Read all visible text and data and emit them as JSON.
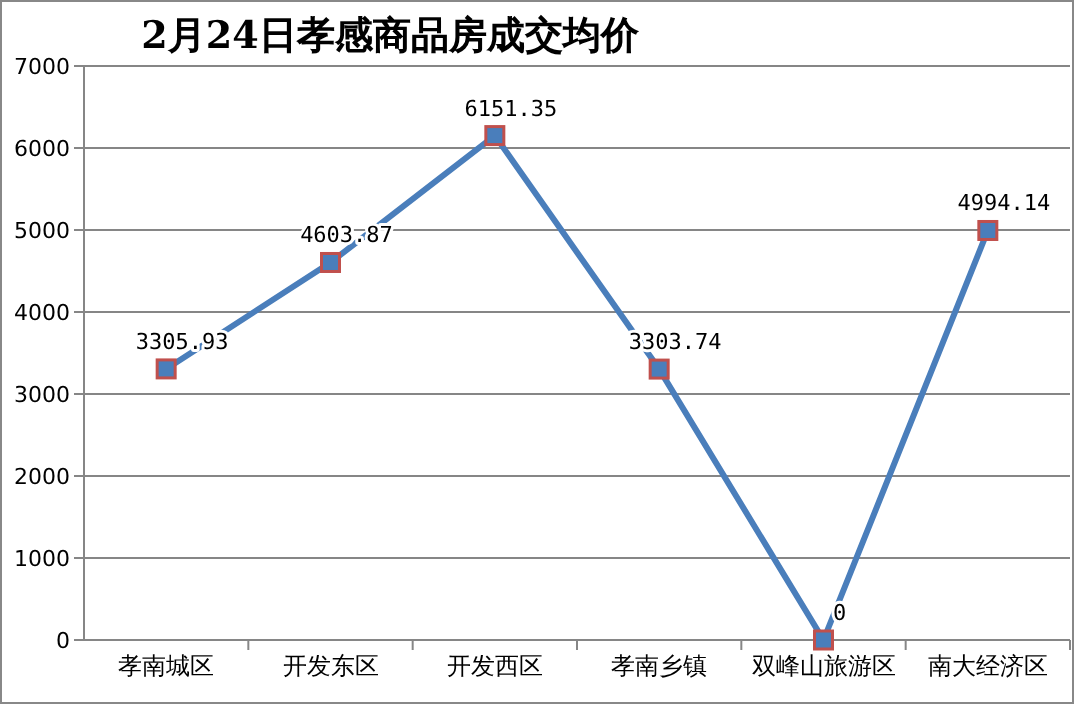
{
  "chart_data": {
    "type": "line",
    "title": "2月24日孝感商品房成交均价",
    "categories": [
      "孝南城区",
      "开发东区",
      "开发西区",
      "孝南乡镇",
      "双峰山旅游区",
      "南大经济区"
    ],
    "series": [
      {
        "color": "#4a7ebb",
        "values": [
          3305.93,
          4603.87,
          6151.35,
          3303.74,
          0,
          4994.14
        ]
      }
    ],
    "ylim": [
      0,
      7000
    ],
    "yticks": [
      0,
      1000,
      2000,
      3000,
      4000,
      5000,
      6000,
      7000
    ],
    "grid": "y",
    "marker": "square",
    "line_style": "solid",
    "data_labels": true
  }
}
